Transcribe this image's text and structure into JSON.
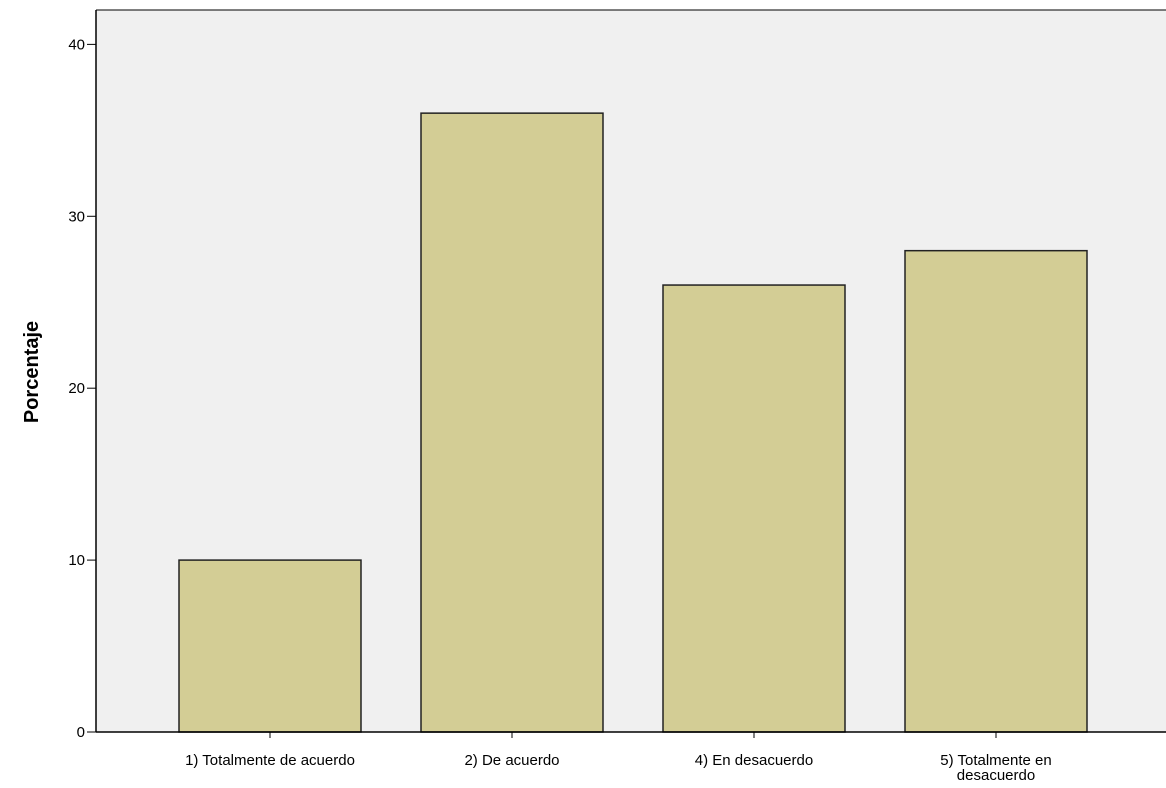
{
  "chart_data": {
    "type": "bar",
    "title": "",
    "xlabel": "",
    "ylabel": "Porcentaje",
    "categories": [
      [
        "1) Totalmente de acuerdo"
      ],
      [
        "2) De acuerdo"
      ],
      [
        "4)  En desacuerdo"
      ],
      [
        "5) Totalmente en",
        "desacuerdo"
      ]
    ],
    "values": [
      10,
      36,
      26,
      28
    ],
    "ylim": [
      0,
      42
    ],
    "yticks": [
      0,
      10,
      20,
      30,
      40
    ],
    "grid": false,
    "legend": "none",
    "colors": {
      "bar_fill": "#d3cd95",
      "bar_stroke": "#222222",
      "plot_background": "#f0f0f0",
      "axis": "#000000"
    }
  }
}
